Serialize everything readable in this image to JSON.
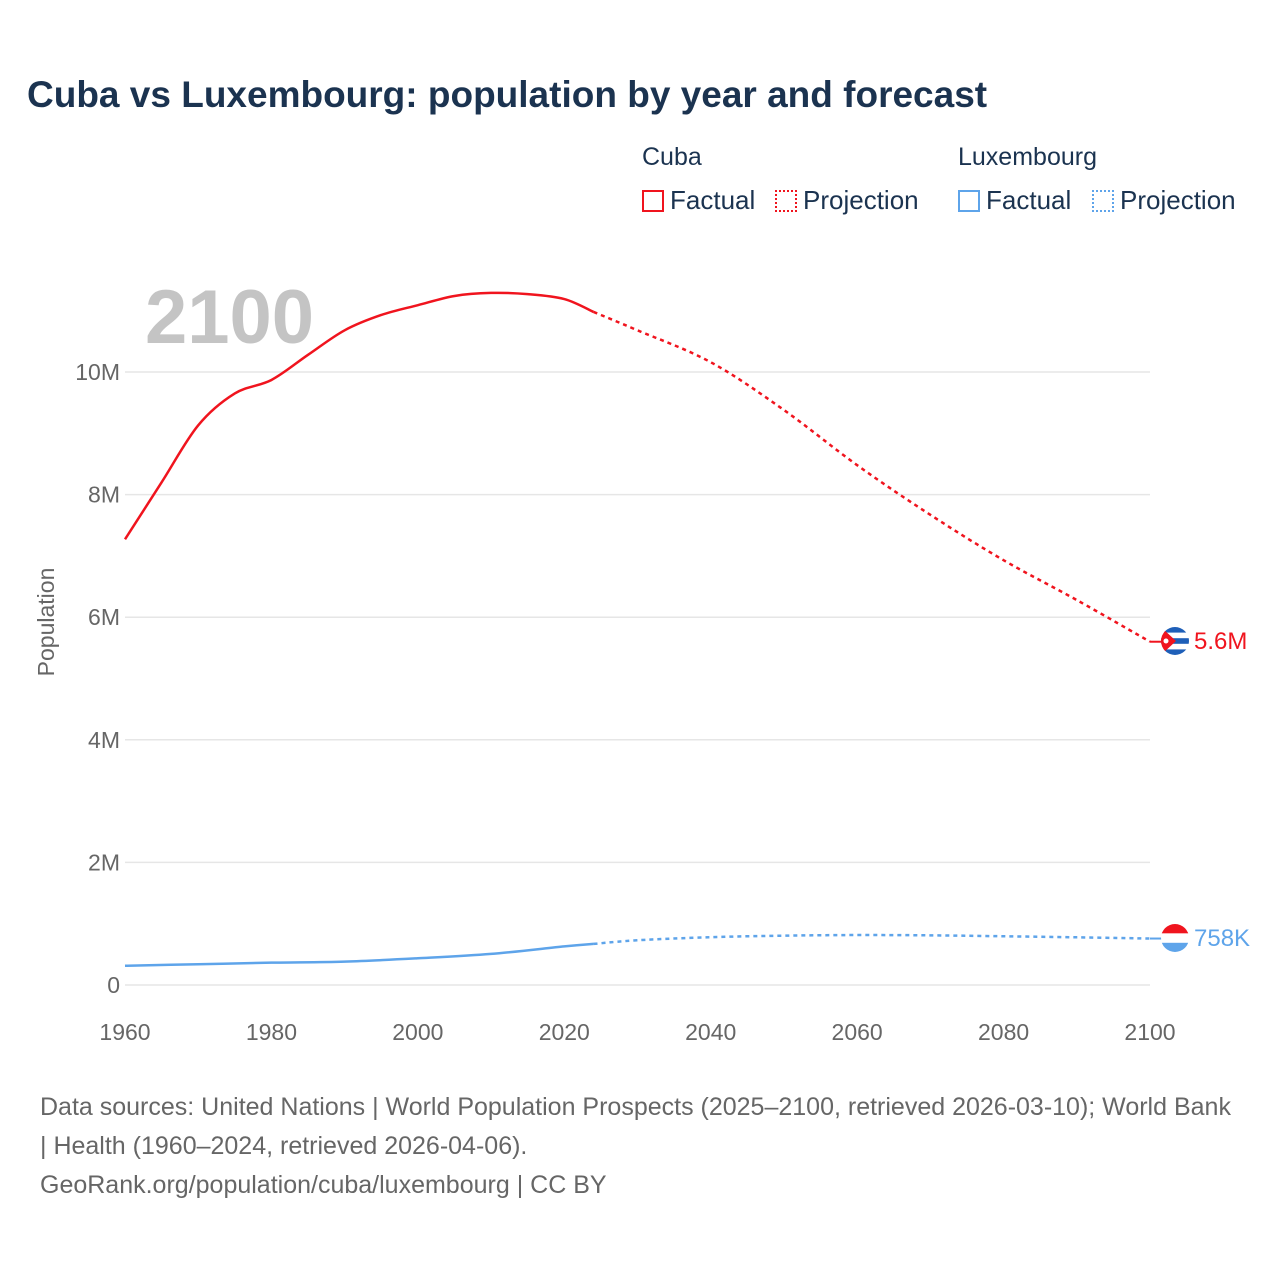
{
  "chart_data": {
    "type": "line",
    "title": "Cuba vs Luxembourg: population by year and forecast",
    "xlabel": "",
    "ylabel": "Population",
    "xlim": [
      1960,
      2100
    ],
    "ylim": [
      0,
      11500000
    ],
    "grid": true,
    "current_year_label": "2100",
    "x_ticks": [
      "1960",
      "1980",
      "2000",
      "2020",
      "2040",
      "2060",
      "2080",
      "2100"
    ],
    "x_tick_values": [
      1960,
      1980,
      2000,
      2020,
      2040,
      2060,
      2080,
      2100
    ],
    "y_ticks": [
      "0",
      "2M",
      "4M",
      "6M",
      "8M",
      "10M"
    ],
    "y_tick_values": [
      0,
      2000000,
      4000000,
      6000000,
      8000000,
      10000000
    ],
    "legend_placement": "top-right",
    "series": [
      {
        "name": "Cuba",
        "color": "#f0141e",
        "end_label": "5.6M",
        "flag": "cuba-flag",
        "factual": {
          "label": "Factual",
          "x": [
            1960,
            1965,
            1970,
            1975,
            1980,
            1985,
            1990,
            1995,
            2000,
            2005,
            2010,
            2015,
            2020,
            2024
          ],
          "y": [
            7270000,
            8200000,
            9130000,
            9650000,
            9870000,
            10280000,
            10680000,
            10930000,
            11090000,
            11240000,
            11290000,
            11270000,
            11190000,
            10980000
          ]
        },
        "projection": {
          "label": "Projection",
          "x": [
            2024,
            2030,
            2040,
            2050,
            2060,
            2070,
            2080,
            2090,
            2100
          ],
          "y": [
            10980000,
            10680000,
            10160000,
            9380000,
            8480000,
            7670000,
            6930000,
            6280000,
            5600000
          ]
        }
      },
      {
        "name": "Luxembourg",
        "color": "#5ea4ea",
        "end_label": "758K",
        "flag": "luxembourg-flag",
        "factual": {
          "label": "Factual",
          "x": [
            1960,
            1970,
            1980,
            1990,
            2000,
            2010,
            2020,
            2024
          ],
          "y": [
            314000,
            339000,
            364000,
            382000,
            436000,
            507000,
            630000,
            670000
          ]
        },
        "projection": {
          "label": "Projection",
          "x": [
            2024,
            2030,
            2040,
            2050,
            2060,
            2070,
            2080,
            2090,
            2100
          ],
          "y": [
            670000,
            730000,
            780000,
            805000,
            815000,
            810000,
            795000,
            778000,
            758000
          ]
        }
      }
    ]
  },
  "footer": {
    "sources": "Data sources: United Nations | World Population Prospects (2025–2100, retrieved 2026-03-10); World Bank | Health (1960–2024, retrieved 2026-04-06).",
    "link": "GeoRank.org/population/cuba/luxembourg | CC BY"
  }
}
